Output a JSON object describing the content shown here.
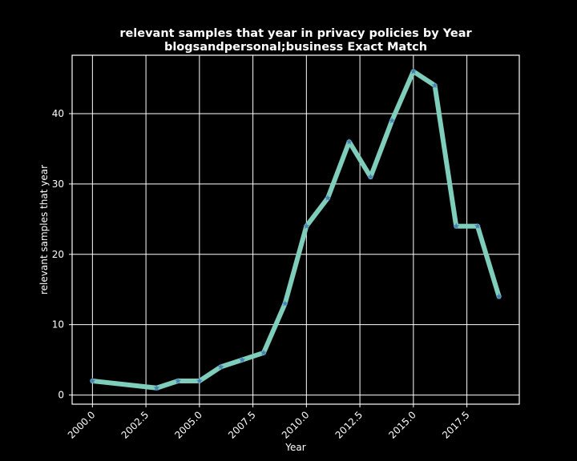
{
  "chart_data": {
    "type": "line",
    "title": "relevant samples that year in privacy policies by Year",
    "subtitle": "blogsandpersonal;business Exact Match",
    "xlabel": "Year",
    "ylabel": "relevant samples that year",
    "xlim": [
      1999.05,
      2019.95
    ],
    "ylim": [
      -1.3,
      48.3
    ],
    "x_ticks": [
      2000.0,
      2002.5,
      2005.0,
      2007.5,
      2010.0,
      2012.5,
      2015.0,
      2017.5
    ],
    "x_tick_labels": [
      "2000.0",
      "2002.5",
      "2005.0",
      "2007.5",
      "2010.0",
      "2012.5",
      "2015.0",
      "2017.5"
    ],
    "y_ticks": [
      0,
      10,
      20,
      30,
      40
    ],
    "y_tick_labels": [
      "0",
      "10",
      "20",
      "30",
      "40"
    ],
    "grid": true,
    "background": "#000000",
    "line_color": "#7fcdbb",
    "marker_color": "#4a7fb5",
    "marker": "star",
    "series": [
      {
        "x": [
          2000,
          2003,
          2004,
          2005,
          2006,
          2007,
          2008,
          2009,
          2010,
          2011,
          2012,
          2013,
          2014,
          2015,
          2016,
          2017,
          2018,
          2019
        ],
        "values": [
          2,
          1,
          2,
          2,
          4,
          5,
          6,
          13,
          24,
          28,
          36,
          31,
          39,
          46,
          44,
          24,
          24,
          14
        ]
      }
    ]
  }
}
